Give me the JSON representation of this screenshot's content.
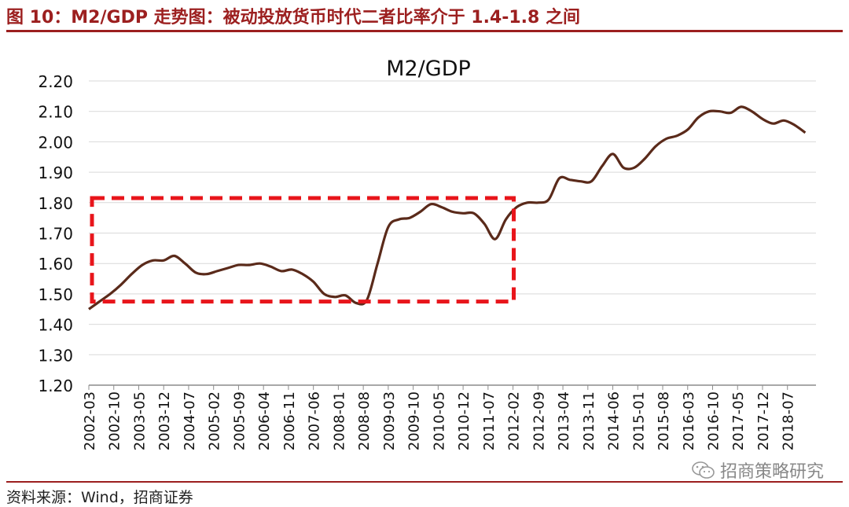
{
  "figure": {
    "title": "图 10：M2/GDP 走势图：被动投放货币时代二者比率介于 1.4-1.8 之间",
    "source": "资料来源：Wind，招商证券",
    "watermark": "招商策略研究",
    "watermark_icon": "wechat-icon"
  },
  "colors": {
    "accent": "#9c1f1f",
    "line": "#5a2a1a",
    "highlight_box": "#e8151b",
    "grid": "#d9d9d9"
  },
  "chart_data": {
    "type": "line",
    "title": "M2/GDP",
    "xlabel": "",
    "ylabel": "",
    "ylim": [
      1.2,
      2.2
    ],
    "yticks": [
      "1.20",
      "1.30",
      "1.40",
      "1.50",
      "1.60",
      "1.70",
      "1.80",
      "1.90",
      "2.00",
      "2.10",
      "2.20"
    ],
    "grid": true,
    "legend": "none",
    "xtick_labels": [
      "2002-03",
      "2002-10",
      "2003-05",
      "2003-12",
      "2004-07",
      "2005-02",
      "2005-09",
      "2006-04",
      "2006-11",
      "2007-06",
      "2008-01",
      "2008-08",
      "2009-03",
      "2009-10",
      "2010-05",
      "2010-12",
      "2011-07",
      "2012-02",
      "2012-09",
      "2013-04",
      "2013-11",
      "2014-06",
      "2015-01",
      "2015-08",
      "2016-03",
      "2016-10",
      "2017-05",
      "2017-12",
      "2018-07"
    ],
    "x": [
      "2002-03",
      "2002-06",
      "2002-09",
      "2002-12",
      "2003-03",
      "2003-06",
      "2003-09",
      "2003-12",
      "2004-03",
      "2004-06",
      "2004-09",
      "2004-12",
      "2005-03",
      "2005-06",
      "2005-09",
      "2005-12",
      "2006-03",
      "2006-06",
      "2006-09",
      "2006-12",
      "2007-03",
      "2007-06",
      "2007-09",
      "2007-12",
      "2008-03",
      "2008-06",
      "2008-09",
      "2008-12",
      "2009-03",
      "2009-06",
      "2009-09",
      "2009-12",
      "2010-03",
      "2010-06",
      "2010-09",
      "2010-12",
      "2011-03",
      "2011-06",
      "2011-09",
      "2011-12",
      "2012-03",
      "2012-06",
      "2012-09",
      "2012-12",
      "2013-03",
      "2013-06",
      "2013-09",
      "2013-12",
      "2014-03",
      "2014-06",
      "2014-09",
      "2014-12",
      "2015-03",
      "2015-06",
      "2015-09",
      "2015-12",
      "2016-03",
      "2016-06",
      "2016-09",
      "2016-12",
      "2017-03",
      "2017-06",
      "2017-09",
      "2017-12",
      "2018-03",
      "2018-06",
      "2018-09",
      "2018-12"
    ],
    "series": [
      {
        "values": [
          1.45,
          1.475,
          1.5,
          1.53,
          1.565,
          1.595,
          1.61,
          1.61,
          1.625,
          1.6,
          1.57,
          1.565,
          1.575,
          1.585,
          1.595,
          1.595,
          1.6,
          1.59,
          1.575,
          1.58,
          1.565,
          1.54,
          1.5,
          1.49,
          1.495,
          1.47,
          1.48,
          1.6,
          1.72,
          1.745,
          1.75,
          1.77,
          1.795,
          1.785,
          1.77,
          1.765,
          1.765,
          1.73,
          1.68,
          1.745,
          1.785,
          1.8,
          1.8,
          1.81,
          1.88,
          1.875,
          1.87,
          1.87,
          1.92,
          1.96,
          1.915,
          1.915,
          1.945,
          1.985,
          2.01,
          2.02,
          2.04,
          2.08,
          2.1,
          2.1,
          2.095,
          2.115,
          2.1,
          2.075,
          2.06,
          2.07,
          2.055,
          2.03
        ]
      }
    ],
    "highlight_box": {
      "x_from": "2002-03",
      "x_to": "2011-12",
      "y_from": 1.475,
      "y_to": 1.815
    }
  }
}
